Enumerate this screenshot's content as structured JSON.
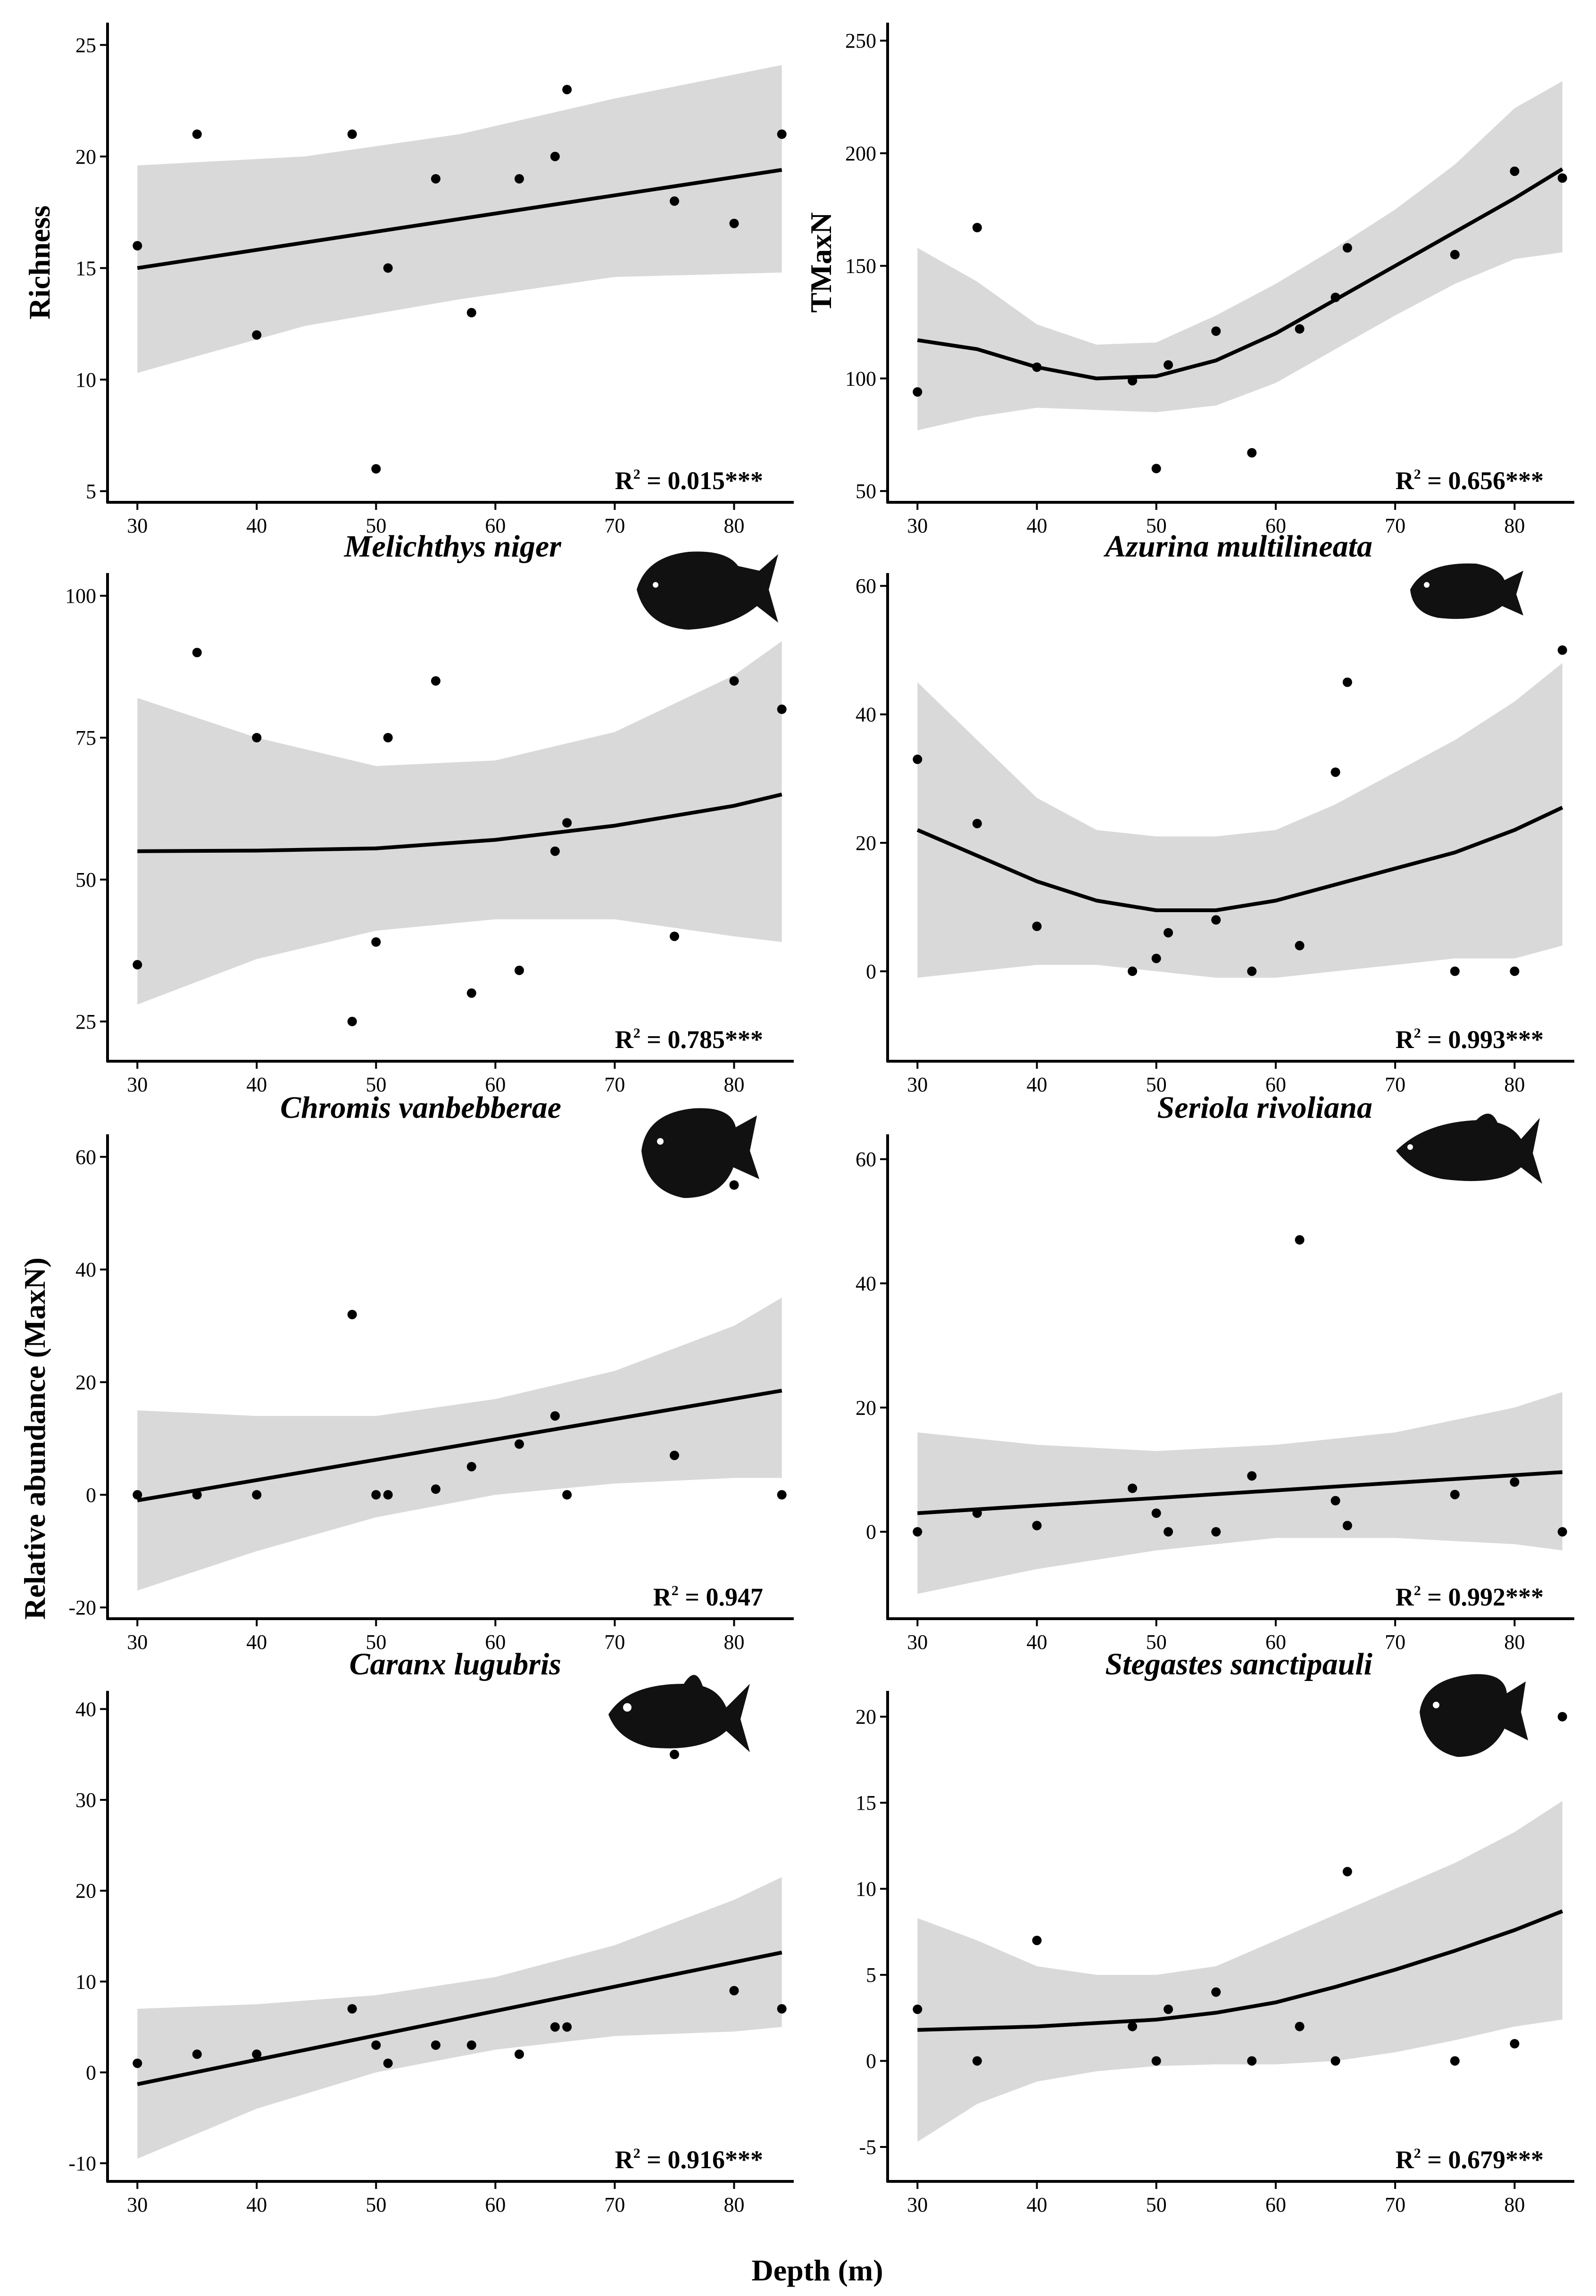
{
  "figure": {
    "shared_xlabel": "Depth (m)",
    "shared_ylabel": "Relative abundance (MaxN)"
  },
  "chart_data": [
    {
      "type": "scatter",
      "fit": "linear",
      "title": "",
      "xlabel": "",
      "ylabel": "Richness",
      "xlim": [
        27.5,
        85
      ],
      "ylim": [
        4.5,
        26
      ],
      "xticks": [
        30,
        40,
        50,
        60,
        70,
        80
      ],
      "yticks": [
        5,
        10,
        15,
        20,
        25
      ],
      "x": [
        30,
        35,
        40,
        48,
        50,
        51,
        55,
        58,
        62,
        65,
        66,
        75,
        80,
        84
      ],
      "y": [
        16,
        21,
        12,
        21,
        6,
        15,
        19,
        13,
        19,
        20,
        23,
        18,
        17,
        21
      ],
      "fit_x": [
        30,
        84
      ],
      "fit_y": [
        15.0,
        19.4
      ],
      "band_lower": [
        10.3,
        12.4,
        13.6,
        14.6,
        14.8
      ],
      "band_upper": [
        19.6,
        20.0,
        21.0,
        22.6,
        24.1
      ],
      "band_x": [
        30,
        44,
        57,
        70,
        84
      ],
      "r2_label": "R",
      "r2_value": " = 0.015***",
      "r2_exp": "2"
    },
    {
      "type": "scatter",
      "fit": "loess",
      "title": "",
      "xlabel": "",
      "ylabel": "TMaxN",
      "xlim": [
        27.5,
        85
      ],
      "ylim": [
        45,
        258
      ],
      "xticks": [
        30,
        40,
        50,
        60,
        70,
        80
      ],
      "yticks": [
        50,
        100,
        150,
        200,
        250
      ],
      "x": [
        30,
        35,
        40,
        48,
        50,
        51,
        55,
        58,
        62,
        65,
        66,
        75,
        80,
        84
      ],
      "y": [
        94,
        167,
        105,
        99,
        60,
        106,
        121,
        67,
        122,
        136,
        158,
        155,
        192,
        189
      ],
      "fit_x": [
        30,
        35,
        40,
        45,
        50,
        55,
        60,
        65,
        70,
        75,
        80,
        84
      ],
      "fit_y": [
        117,
        113,
        105,
        100,
        101,
        108,
        120,
        135,
        150,
        165,
        180,
        193
      ],
      "band_x": [
        30,
        35,
        40,
        45,
        50,
        55,
        60,
        65,
        70,
        75,
        80,
        84
      ],
      "band_lower": [
        77,
        83,
        87,
        86,
        85,
        88,
        98,
        113,
        128,
        142,
        153,
        156
      ],
      "band_upper": [
        158,
        143,
        124,
        115,
        116,
        128,
        142,
        158,
        175,
        195,
        220,
        232
      ],
      "r2_label": "R",
      "r2_value": " = 0.656***",
      "r2_exp": "2"
    },
    {
      "type": "scatter",
      "fit": "loess",
      "title": "Melichthys niger",
      "xlabel": "",
      "ylabel": "",
      "xlim": [
        27.5,
        85
      ],
      "ylim": [
        18,
        104
      ],
      "xticks": [
        30,
        40,
        50,
        60,
        70,
        80
      ],
      "yticks": [
        25,
        50,
        75,
        100
      ],
      "x": [
        30,
        35,
        40,
        48,
        50,
        51,
        55,
        58,
        62,
        65,
        66,
        75,
        80,
        84
      ],
      "y": [
        35,
        90,
        75,
        25,
        39,
        75,
        85,
        30,
        34,
        55,
        60,
        40,
        85,
        80
      ],
      "fit_x": [
        30,
        40,
        50,
        60,
        70,
        80,
        84
      ],
      "fit_y": [
        55,
        55.1,
        55.5,
        57,
        59.5,
        63,
        65
      ],
      "band_x": [
        30,
        40,
        50,
        60,
        70,
        80,
        84
      ],
      "band_lower": [
        28,
        36,
        41,
        43,
        43,
        40,
        39
      ],
      "band_upper": [
        82,
        75,
        70,
        71,
        76,
        86,
        92
      ],
      "r2_label": "R",
      "r2_value": " = 0.785***",
      "r2_exp": "2"
    },
    {
      "type": "scatter",
      "fit": "loess",
      "title": "Azurina multilineata",
      "xlabel": "",
      "ylabel": "",
      "xlim": [
        27.5,
        85
      ],
      "ylim": [
        -14,
        62
      ],
      "xticks": [
        30,
        40,
        50,
        60,
        70,
        80
      ],
      "yticks": [
        0,
        20,
        40,
        60
      ],
      "x": [
        30,
        35,
        40,
        48,
        50,
        51,
        55,
        58,
        62,
        65,
        66,
        75,
        80,
        84
      ],
      "y": [
        33,
        23,
        7,
        0,
        2,
        6,
        8,
        0,
        4,
        31,
        45,
        0,
        0,
        50
      ],
      "fit_x": [
        30,
        35,
        40,
        45,
        50,
        55,
        60,
        65,
        70,
        75,
        80,
        84
      ],
      "fit_y": [
        22,
        18,
        14,
        11,
        9.5,
        9.5,
        11,
        13.5,
        16,
        18.5,
        22,
        25.5
      ],
      "band_x": [
        30,
        35,
        40,
        45,
        50,
        55,
        60,
        65,
        70,
        75,
        80,
        84
      ],
      "band_lower": [
        -1,
        0,
        1,
        1,
        0,
        -1,
        -1,
        0,
        1,
        2,
        2,
        4
      ],
      "band_upper": [
        45,
        36,
        27,
        22,
        21,
        21,
        22,
        26,
        31,
        36,
        42,
        48
      ],
      "r2_label": "R",
      "r2_value": " = 0.993***",
      "r2_exp": "2"
    },
    {
      "type": "scatter",
      "fit": "linear",
      "title": "Chromis vanbebberae",
      "xlabel": "",
      "ylabel": "",
      "xlim": [
        27.5,
        85
      ],
      "ylim": [
        -22,
        64
      ],
      "xticks": [
        30,
        40,
        50,
        60,
        70,
        80
      ],
      "yticks": [
        -20,
        0,
        20,
        40,
        60
      ],
      "x": [
        30,
        35,
        40,
        48,
        50,
        51,
        55,
        58,
        62,
        65,
        66,
        75,
        80,
        84
      ],
      "y": [
        0,
        0,
        0,
        32,
        0,
        0,
        1,
        5,
        9,
        14,
        0,
        7,
        55,
        0
      ],
      "fit_x": [
        30,
        84
      ],
      "fit_y": [
        -1,
        18.5
      ],
      "band_x": [
        30,
        40,
        50,
        60,
        70,
        80,
        84
      ],
      "band_lower": [
        -17,
        -10,
        -4,
        0,
        2,
        3,
        3
      ],
      "band_upper": [
        15,
        14,
        14,
        17,
        22,
        30,
        35
      ],
      "r2_label": "R",
      "r2_value": " = 0.947",
      "r2_exp": "2"
    },
    {
      "type": "scatter",
      "fit": "linear",
      "title": "Seriola rivoliana",
      "xlabel": "",
      "ylabel": "",
      "xlim": [
        27.5,
        85
      ],
      "ylim": [
        -14,
        64
      ],
      "xticks": [
        30,
        40,
        50,
        60,
        70,
        80
      ],
      "yticks": [
        0,
        20,
        40,
        60
      ],
      "x": [
        30,
        35,
        40,
        48,
        50,
        51,
        55,
        58,
        62,
        65,
        66,
        75,
        80,
        84
      ],
      "y": [
        0,
        3,
        1,
        7,
        3,
        0,
        0,
        9,
        47,
        5,
        1,
        6,
        8,
        0
      ],
      "fit_x": [
        30,
        84
      ],
      "fit_y": [
        3,
        9.6
      ],
      "band_x": [
        30,
        40,
        50,
        60,
        70,
        80,
        84
      ],
      "band_lower": [
        -10,
        -6,
        -3,
        -1,
        -1,
        -2,
        -3
      ],
      "band_upper": [
        16,
        14,
        13,
        14,
        16,
        20,
        22.5
      ],
      "r2_label": "R",
      "r2_value": " = 0.992***",
      "r2_exp": "2"
    },
    {
      "type": "scatter",
      "fit": "linear",
      "title": "Caranx lugubris",
      "xlabel": "",
      "ylabel": "",
      "xlim": [
        27.5,
        85
      ],
      "ylim": [
        -12,
        42
      ],
      "xticks": [
        30,
        40,
        50,
        60,
        70,
        80
      ],
      "yticks": [
        -10,
        0,
        10,
        20,
        30,
        40
      ],
      "x": [
        30,
        35,
        40,
        48,
        50,
        51,
        55,
        58,
        62,
        65,
        66,
        75,
        80,
        84
      ],
      "y": [
        1,
        2,
        2,
        7,
        3,
        1,
        3,
        3,
        2,
        5,
        5,
        35,
        9,
        7
      ],
      "fit_x": [
        30,
        84
      ],
      "fit_y": [
        -1.3,
        13.2
      ],
      "band_x": [
        30,
        40,
        50,
        60,
        70,
        80,
        84
      ],
      "band_lower": [
        -9.5,
        -4,
        0,
        2.5,
        4,
        4.5,
        5
      ],
      "band_upper": [
        7,
        7.5,
        8.5,
        10.5,
        14,
        19,
        21.5
      ],
      "r2_label": "R",
      "r2_value": " = 0.916***",
      "r2_exp": "2"
    },
    {
      "type": "scatter",
      "fit": "loess",
      "title": "Stegastes sanctipauli",
      "xlabel": "",
      "ylabel": "",
      "xlim": [
        27.5,
        85
      ],
      "ylim": [
        -7,
        21.5
      ],
      "xticks": [
        30,
        40,
        50,
        60,
        70,
        80
      ],
      "yticks": [
        -5,
        0,
        5,
        10,
        15,
        20
      ],
      "x": [
        30,
        35,
        40,
        48,
        50,
        51,
        55,
        58,
        62,
        65,
        66,
        75,
        80,
        84
      ],
      "y": [
        3,
        0,
        7,
        2,
        0,
        3,
        4,
        0,
        2,
        0,
        11,
        0,
        1,
        20
      ],
      "fit_x": [
        30,
        35,
        40,
        45,
        50,
        55,
        60,
        65,
        70,
        75,
        80,
        84
      ],
      "fit_y": [
        1.8,
        1.9,
        2.0,
        2.2,
        2.4,
        2.8,
        3.4,
        4.3,
        5.3,
        6.4,
        7.6,
        8.7
      ],
      "band_x": [
        30,
        35,
        40,
        45,
        50,
        55,
        60,
        65,
        70,
        75,
        80,
        84
      ],
      "band_lower": [
        -4.7,
        -2.5,
        -1.2,
        -0.6,
        -0.3,
        -0.2,
        -0.2,
        0,
        0.5,
        1.2,
        2,
        2.4
      ],
      "band_upper": [
        8.3,
        7.0,
        5.5,
        5.0,
        5.0,
        5.5,
        7.0,
        8.5,
        10.0,
        11.5,
        13.3,
        15.1
      ],
      "r2_label": "R",
      "r2_value": " = 0.679***",
      "r2_exp": "2"
    }
  ],
  "icon_names": [
    "triggerfish-silhouette-icon",
    "damselfish-silhouette-icon",
    "chromis-silhouette-icon",
    "amberjack-silhouette-icon",
    "jack-silhouette-icon",
    "damselfish-silhouette-icon"
  ]
}
